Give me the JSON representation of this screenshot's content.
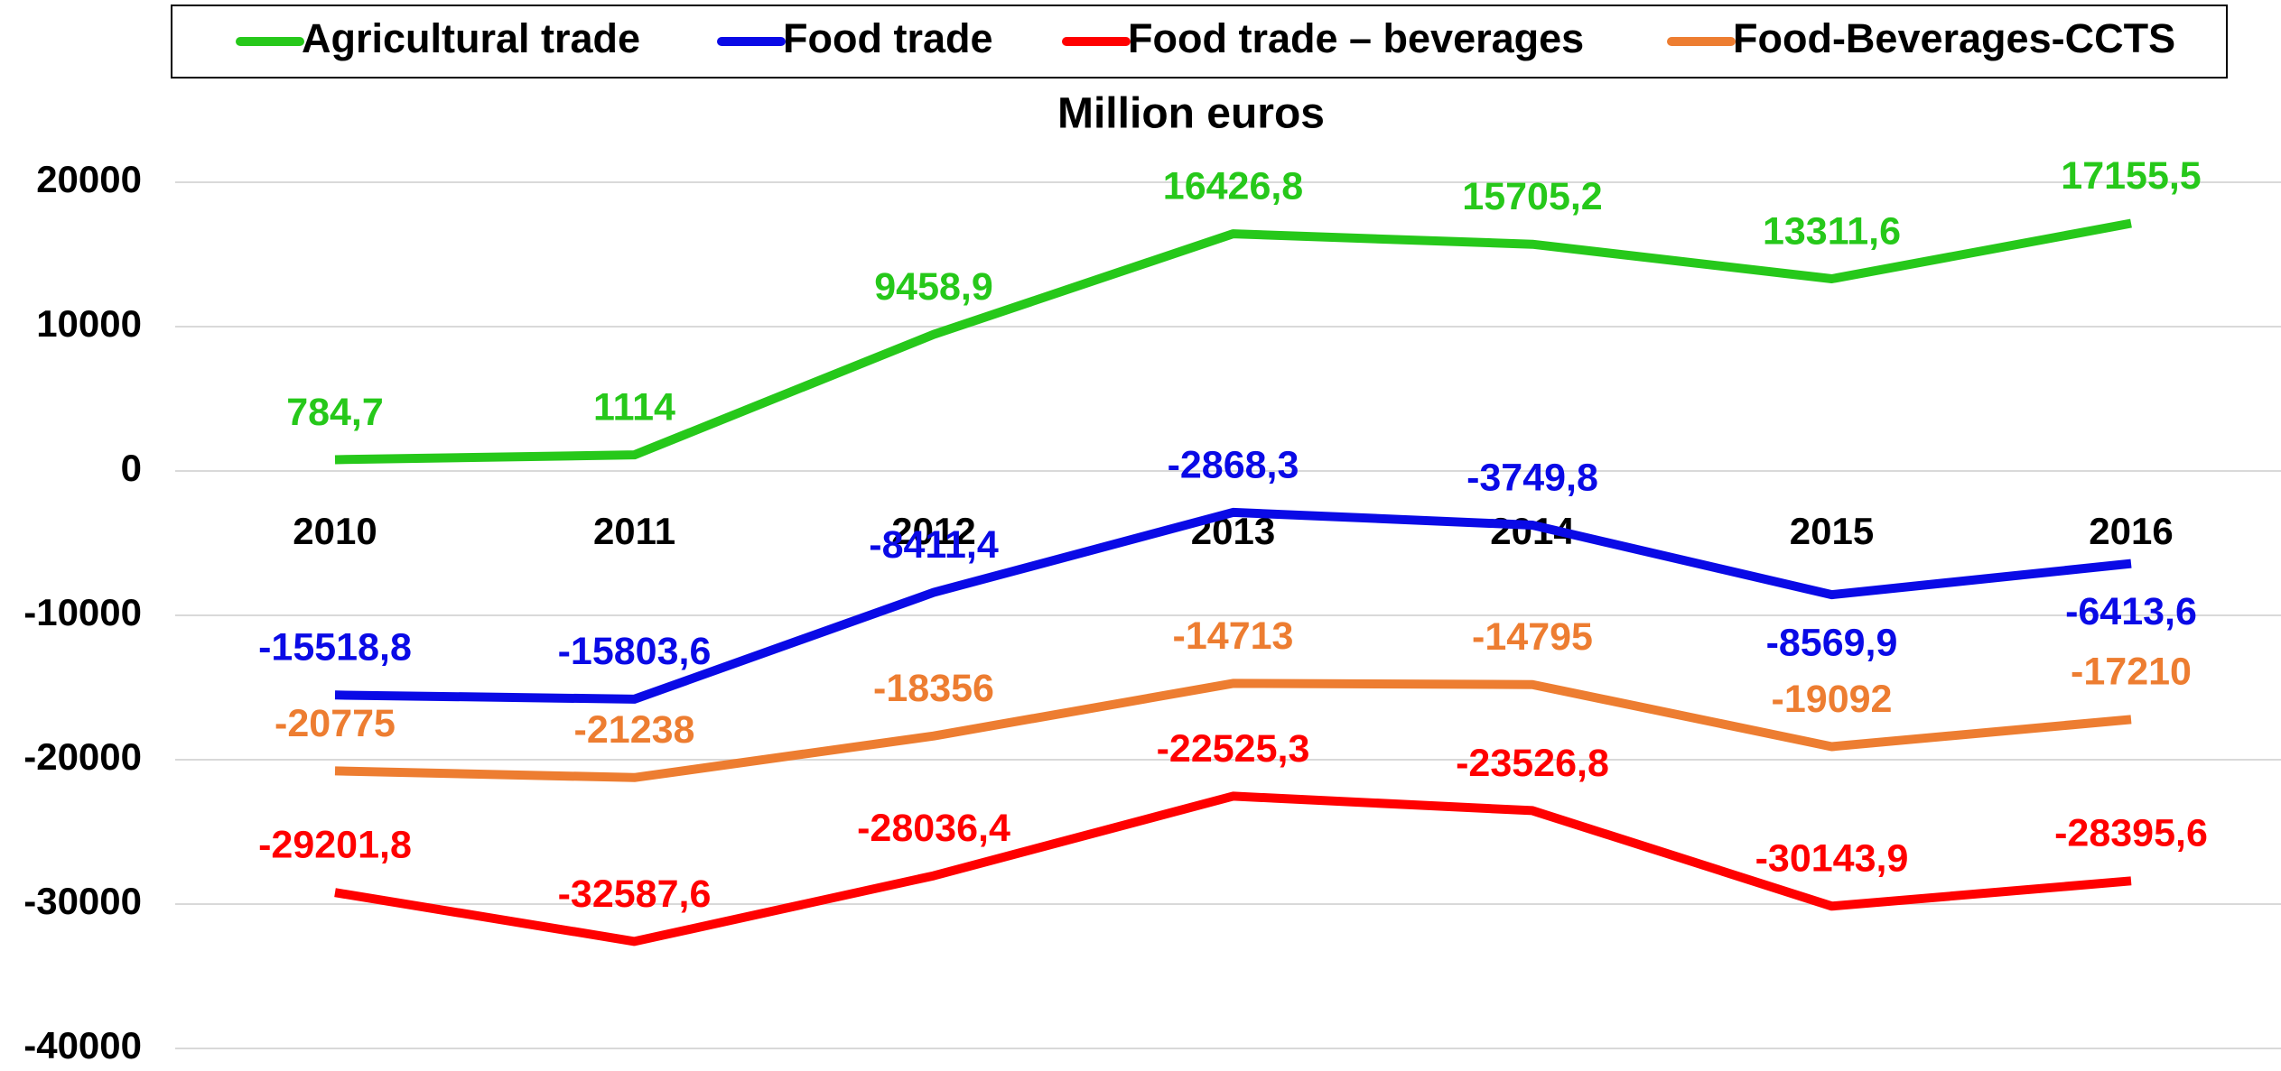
{
  "chart_data": {
    "type": "line",
    "title": "Million euros",
    "categories": [
      "2010",
      "2011",
      "2012",
      "2013",
      "2014",
      "2015",
      "2016"
    ],
    "series": [
      {
        "name": "Agricultural trade",
        "color": "#26c81a",
        "values": [
          784.7,
          1114,
          9458.9,
          16426.8,
          15705.2,
          13311.6,
          17155.5
        ],
        "value_labels": [
          "784,7",
          "1114",
          "9458,9",
          "16426,8",
          "15705,2",
          "13311,6",
          "17155,5"
        ]
      },
      {
        "name": "Food trade",
        "color": "#0a0ae6",
        "values": [
          -15518.8,
          -15803.6,
          -8411.4,
          -2868.3,
          -3749.8,
          -8569.9,
          -6413.6
        ],
        "value_labels": [
          "-15518,8",
          "-15803,6",
          "-8411,4",
          "-2868,3",
          "-3749,8",
          "-8569,9",
          "-6413,6"
        ]
      },
      {
        "name": "Food trade – beverages",
        "color": "#ff0000",
        "values": [
          -29201.8,
          -32587.6,
          -28036.4,
          -22525.3,
          -23526.8,
          -30143.9,
          -28395.6
        ],
        "value_labels": [
          "-29201,8",
          "-32587,6",
          "-28036,4",
          "-22525,3",
          "-23526,8",
          "-30143,9",
          "-28395,6"
        ]
      },
      {
        "name": "Food-Beverages-CCTS",
        "color": "#ed7d31",
        "values": [
          -20775,
          -21238,
          -18356,
          -14713,
          -14795,
          -19092,
          -17210
        ],
        "value_labels": [
          "-20775",
          "-21238",
          "-18356",
          "-14713",
          "-14795",
          "-19092",
          "-17210"
        ]
      }
    ],
    "ylim": [
      -40000,
      20000
    ],
    "yticks": [
      -40000,
      -30000,
      -20000,
      -10000,
      0,
      10000,
      20000
    ],
    "grid": true,
    "legend": "top"
  }
}
